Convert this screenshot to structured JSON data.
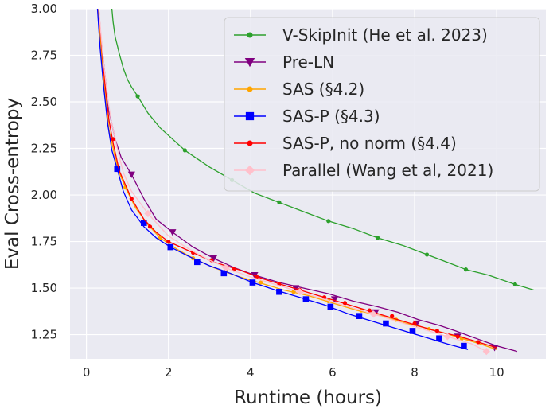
{
  "chart_data": {
    "type": "line",
    "xlabel": "Runtime (hours)",
    "ylabel": "Eval Cross-entropy",
    "xlim": [
      -0.4,
      11.2
    ],
    "ylim": [
      1.12,
      3.0
    ],
    "xticks": [
      0,
      2,
      4,
      6,
      8,
      10
    ],
    "yticks": [
      1.25,
      1.5,
      1.75,
      2.0,
      2.25,
      2.5,
      2.75,
      3.0
    ],
    "xtick_labels": [
      "0",
      "2",
      "4",
      "6",
      "8",
      "10"
    ],
    "ytick_labels": [
      "1.25",
      "1.50",
      "1.75",
      "2.00",
      "2.25",
      "2.50",
      "2.75",
      "3.00"
    ],
    "background": "#eaeaf2",
    "grid": true,
    "legend_position": "top-right",
    "series": [
      {
        "name": "V-SkipInit (He et al. 2023)",
        "color": "#2ca02c",
        "marker": "circle",
        "x": [
          0.62,
          0.65,
          0.7,
          0.8,
          0.9,
          1.0,
          1.1,
          1.25,
          1.5,
          1.8,
          2.4,
          3.0,
          3.55,
          4.1,
          4.7,
          5.3,
          5.9,
          6.5,
          7.1,
          7.7,
          8.3,
          8.9,
          9.25,
          9.8,
          10.45,
          10.9
        ],
        "y": [
          3.0,
          2.93,
          2.85,
          2.76,
          2.68,
          2.62,
          2.58,
          2.53,
          2.44,
          2.36,
          2.24,
          2.15,
          2.08,
          2.01,
          1.96,
          1.91,
          1.86,
          1.82,
          1.77,
          1.73,
          1.68,
          1.63,
          1.6,
          1.57,
          1.52,
          1.49
        ],
        "marker_x": [
          1.25,
          2.4,
          3.55,
          4.7,
          5.9,
          7.1,
          8.3,
          9.25,
          10.45
        ],
        "marker_y": [
          2.53,
          2.24,
          2.08,
          1.96,
          1.86,
          1.77,
          1.68,
          1.6,
          1.52
        ]
      },
      {
        "name": "Pre-LN",
        "color": "#800080",
        "marker": "triangle-down",
        "x": [
          0.28,
          0.35,
          0.45,
          0.55,
          0.7,
          0.85,
          1.1,
          1.4,
          1.7,
          2.1,
          2.6,
          3.1,
          3.6,
          4.1,
          4.7,
          5.3,
          5.9,
          6.5,
          7.1,
          7.6,
          8.1,
          8.6,
          9.0,
          9.5,
          10.0,
          10.5
        ],
        "y": [
          3.0,
          2.85,
          2.65,
          2.45,
          2.3,
          2.2,
          2.11,
          1.98,
          1.87,
          1.8,
          1.72,
          1.66,
          1.61,
          1.57,
          1.53,
          1.5,
          1.47,
          1.43,
          1.4,
          1.37,
          1.33,
          1.3,
          1.27,
          1.23,
          1.19,
          1.16
        ],
        "marker_x": [
          1.1,
          2.1,
          3.1,
          4.1,
          5.1,
          6.05,
          7.05,
          8.05,
          9.05,
          9.95
        ],
        "marker_y": [
          2.11,
          1.8,
          1.66,
          1.57,
          1.5,
          1.44,
          1.37,
          1.31,
          1.24,
          1.18
        ]
      },
      {
        "name": "SAS (§4.2)",
        "color": "#ffa500",
        "marker": "circle",
        "x": [
          0.28,
          0.35,
          0.45,
          0.55,
          0.7,
          0.8,
          0.95,
          1.2,
          1.5,
          1.8,
          2.2,
          2.6,
          3.1,
          3.6,
          4.2,
          4.8,
          5.4,
          6.0,
          6.6,
          7.2,
          7.8,
          8.4,
          9.0,
          9.6,
          10.0
        ],
        "y": [
          3.0,
          2.8,
          2.55,
          2.35,
          2.2,
          2.12,
          2.04,
          1.93,
          1.84,
          1.77,
          1.71,
          1.66,
          1.61,
          1.57,
          1.53,
          1.49,
          1.46,
          1.42,
          1.38,
          1.35,
          1.31,
          1.28,
          1.24,
          1.2,
          1.17
        ],
        "marker_x": [
          0.95,
          1.8,
          2.6,
          3.4,
          4.25,
          5.05,
          5.9,
          6.7,
          7.55,
          8.35,
          9.15
        ],
        "marker_y": [
          2.04,
          1.77,
          1.66,
          1.59,
          1.53,
          1.48,
          1.43,
          1.38,
          1.33,
          1.28,
          1.23
        ]
      },
      {
        "name": "SAS-P (§4.3)",
        "color": "#0000ff",
        "marker": "square",
        "x": [
          0.27,
          0.33,
          0.42,
          0.52,
          0.62,
          0.75,
          0.9,
          1.1,
          1.4,
          1.7,
          2.05,
          2.5,
          3.0,
          3.5,
          4.05,
          4.6,
          5.2,
          5.8,
          6.4,
          7.0,
          7.6,
          8.2,
          8.8,
          9.3
        ],
        "y": [
          3.0,
          2.8,
          2.58,
          2.38,
          2.24,
          2.14,
          2.02,
          1.92,
          1.83,
          1.77,
          1.72,
          1.67,
          1.62,
          1.58,
          1.53,
          1.49,
          1.45,
          1.41,
          1.36,
          1.32,
          1.28,
          1.24,
          1.2,
          1.17
        ],
        "marker_x": [
          0.75,
          1.4,
          2.05,
          2.7,
          3.35,
          4.05,
          4.7,
          5.35,
          5.95,
          6.65,
          7.3,
          7.95,
          8.6,
          9.2
        ],
        "marker_y": [
          2.14,
          1.85,
          1.72,
          1.64,
          1.58,
          1.53,
          1.48,
          1.44,
          1.4,
          1.35,
          1.31,
          1.27,
          1.23,
          1.19
        ]
      },
      {
        "name": "SAS-P, no norm (§4.4)",
        "color": "#ff0000",
        "marker": "circle",
        "x": [
          0.3,
          0.37,
          0.45,
          0.55,
          0.65,
          0.8,
          1.1,
          1.4,
          1.7,
          2.0,
          2.6,
          3.1,
          3.7,
          4.3,
          4.9,
          5.5,
          6.1,
          6.7,
          7.3,
          7.9,
          8.5,
          9.1,
          9.7,
          10.0
        ],
        "y": [
          3.0,
          2.8,
          2.6,
          2.4,
          2.28,
          2.13,
          1.98,
          1.87,
          1.8,
          1.75,
          1.69,
          1.64,
          1.6,
          1.55,
          1.51,
          1.47,
          1.43,
          1.39,
          1.35,
          1.31,
          1.27,
          1.24,
          1.2,
          1.18
        ],
        "marker_x": [
          0.65,
          1.1,
          1.55,
          2.0,
          2.6,
          3.05,
          3.6,
          4.15,
          4.7,
          5.2,
          5.8,
          6.3,
          6.9,
          7.45,
          8.0,
          8.55,
          9.05,
          9.55
        ],
        "marker_y": [
          2.3,
          1.98,
          1.83,
          1.75,
          1.69,
          1.65,
          1.6,
          1.56,
          1.52,
          1.49,
          1.45,
          1.42,
          1.38,
          1.35,
          1.31,
          1.27,
          1.24,
          1.21
        ]
      },
      {
        "name": "Parallel (Wang et al, 2021)",
        "color": "#ffc0cb",
        "marker": "diamond",
        "x": [
          0.3,
          0.4,
          0.5,
          0.6,
          0.75,
          0.9,
          1.1,
          1.5,
          2.0,
          2.5,
          3.0,
          3.5,
          4.0,
          4.6,
          5.2,
          5.8,
          6.4,
          7.0,
          7.6,
          8.2,
          8.8,
          9.4,
          9.75
        ],
        "y": [
          3.0,
          2.75,
          2.55,
          2.4,
          2.25,
          2.12,
          2.02,
          1.9,
          1.78,
          1.71,
          1.65,
          1.6,
          1.56,
          1.52,
          1.48,
          1.44,
          1.4,
          1.36,
          1.32,
          1.28,
          1.24,
          1.2,
          1.16
        ],
        "marker_x": [
          1.5,
          3.4,
          5.2,
          7.0,
          8.8,
          9.75
        ],
        "marker_y": [
          1.9,
          1.61,
          1.48,
          1.36,
          1.24,
          1.16
        ]
      }
    ]
  }
}
